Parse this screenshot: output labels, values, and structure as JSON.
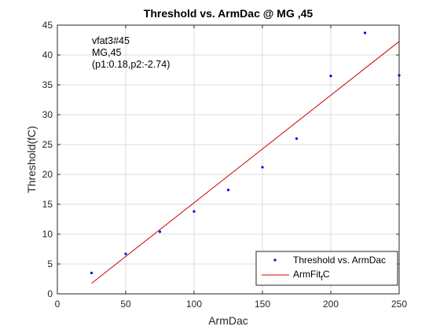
{
  "chart_data": {
    "type": "scatter",
    "title": "Threshold vs. ArmDac @ MG ,45",
    "xlabel": "ArmDac",
    "ylabel": "Threshold(fC)",
    "xlim": [
      0,
      250
    ],
    "ylim": [
      0,
      45
    ],
    "xticks": [
      0,
      50,
      100,
      150,
      200,
      250
    ],
    "yticks": [
      0,
      5,
      10,
      15,
      20,
      25,
      30,
      35,
      40,
      45
    ],
    "grid": true,
    "legend_position": "bottom-right",
    "annotations": [
      "vfat3#45",
      "MG,45",
      "(p1:0.18,p2:-2.74)"
    ],
    "series": [
      {
        "name": "Threshold vs. ArmDac",
        "kind": "points",
        "color": "#0000ff",
        "x": [
          25,
          50,
          75,
          100,
          125,
          150,
          175,
          200,
          225,
          250
        ],
        "y": [
          3.5,
          6.7,
          10.4,
          13.8,
          17.4,
          21.2,
          26.0,
          36.5,
          43.7,
          36.6
        ]
      },
      {
        "name": "ArmFit_fC",
        "kind": "line",
        "color": "#cc0000",
        "x": [
          25,
          250
        ],
        "y": [
          1.76,
          42.26
        ]
      }
    ],
    "legend": [
      {
        "label_main": "Threshold vs. ArmDac",
        "label_sub": ""
      },
      {
        "label_main": "ArmFit",
        "label_sub": "f",
        "label_tail": "C"
      }
    ]
  }
}
